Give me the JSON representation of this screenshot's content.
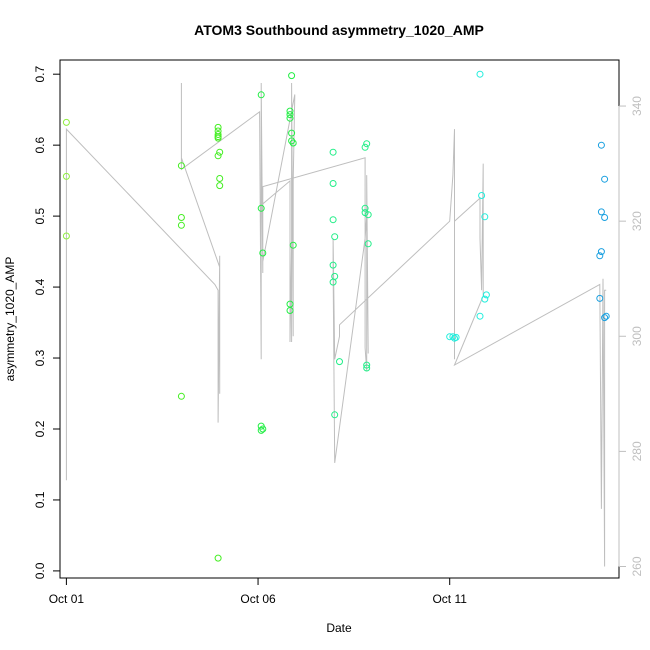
{
  "chart_data": {
    "type": "scatter",
    "title": "ATOM3 Southbound asymmetry_1020_AMP",
    "xlabel": "Date",
    "ylabel": "asymmetry_1020_AMP",
    "xlim": [
      "2023-09-30 20:00",
      "2023-10-15 10:00"
    ],
    "ylim": [
      -0.01,
      0.72
    ],
    "x_ticks": [
      {
        "date": "2023-10-01 00:00",
        "label": "Oct 01"
      },
      {
        "date": "2023-10-06 00:00",
        "label": "Oct 06"
      },
      {
        "date": "2023-10-11 00:00",
        "label": "Oct 11"
      }
    ],
    "y_ticks": [
      0.0,
      0.1,
      0.2,
      0.3,
      0.4,
      0.5,
      0.6,
      0.7
    ],
    "y2lim": [
      258,
      348
    ],
    "y2_ticks": [
      260,
      280,
      300,
      320,
      340
    ],
    "y2_color": "#bfbfbf",
    "grid": false,
    "colors": {
      "early_green": "#90ee40",
      "green": "#22ee22",
      "teal_green": "#22eeaa",
      "cyan": "#22eeee",
      "blue": "#1aa0e0",
      "line": "#bebebe"
    },
    "series": [
      {
        "type": "scatter",
        "color": "#90ee40",
        "points": [
          [
            "2023-10-01 00:00",
            0.632
          ],
          [
            "2023-10-01 00:00",
            0.556
          ],
          [
            "2023-10-01 00:00",
            0.472
          ]
        ]
      },
      {
        "type": "scatter",
        "color": "#44ee22",
        "points": [
          [
            "2023-10-04 00:00",
            0.571
          ],
          [
            "2023-10-04 00:00",
            0.498
          ],
          [
            "2023-10-04 00:00",
            0.487
          ],
          [
            "2023-10-04 00:00",
            0.246
          ],
          [
            "2023-10-04 23:00",
            0.625
          ],
          [
            "2023-10-04 23:00",
            0.62
          ],
          [
            "2023-10-04 23:00",
            0.615
          ],
          [
            "2023-10-04 23:00",
            0.612
          ],
          [
            "2023-10-04 23:00",
            0.61
          ],
          [
            "2023-10-05 00:00",
            0.59
          ],
          [
            "2023-10-04 23:00",
            0.585
          ],
          [
            "2023-10-05 00:00",
            0.553
          ],
          [
            "2023-10-05 00:00",
            0.543
          ],
          [
            "2023-10-04 23:00",
            0.018
          ]
        ]
      },
      {
        "type": "scatter",
        "color": "#22ee44",
        "points": [
          [
            "2023-10-06 02:00",
            0.671
          ],
          [
            "2023-10-06 02:00",
            0.511
          ],
          [
            "2023-10-06 03:00",
            0.448
          ],
          [
            "2023-10-06 02:00",
            0.204
          ],
          [
            "2023-10-06 02:00",
            0.198
          ],
          [
            "2023-10-06 03:00",
            0.2
          ],
          [
            "2023-10-06 21:00",
            0.698
          ],
          [
            "2023-10-06 20:00",
            0.648
          ],
          [
            "2023-10-06 20:00",
            0.643
          ],
          [
            "2023-10-06 20:00",
            0.638
          ],
          [
            "2023-10-06 21:00",
            0.617
          ],
          [
            "2023-10-06 21:00",
            0.606
          ],
          [
            "2023-10-06 22:00",
            0.603
          ],
          [
            "2023-10-06 22:00",
            0.459
          ],
          [
            "2023-10-06 20:00",
            0.376
          ],
          [
            "2023-10-06 20:00",
            0.367
          ]
        ]
      },
      {
        "type": "scatter",
        "color": "#22ee88",
        "points": [
          [
            "2023-10-07 23:00",
            0.59
          ],
          [
            "2023-10-07 23:00",
            0.546
          ],
          [
            "2023-10-07 23:00",
            0.495
          ],
          [
            "2023-10-08 00:00",
            0.471
          ],
          [
            "2023-10-07 23:00",
            0.431
          ],
          [
            "2023-10-08 00:00",
            0.415
          ],
          [
            "2023-10-07 23:00",
            0.407
          ],
          [
            "2023-10-08 03:00",
            0.295
          ],
          [
            "2023-10-08 00:00",
            0.22
          ],
          [
            "2023-10-08 20:00",
            0.602
          ],
          [
            "2023-10-08 19:00",
            0.597
          ],
          [
            "2023-10-08 19:00",
            0.511
          ],
          [
            "2023-10-08 19:00",
            0.505
          ],
          [
            "2023-10-08 21:00",
            0.502
          ],
          [
            "2023-10-08 21:00",
            0.461
          ],
          [
            "2023-10-08 20:00",
            0.29
          ],
          [
            "2023-10-08 20:00",
            0.286
          ]
        ]
      },
      {
        "type": "scatter",
        "color": "#22eedd",
        "points": [
          [
            "2023-10-11 00:00",
            0.33
          ],
          [
            "2023-10-11 02:00",
            0.33
          ],
          [
            "2023-10-11 03:00",
            0.328
          ],
          [
            "2023-10-11 04:00",
            0.329
          ],
          [
            "2023-10-11 19:00",
            0.7
          ],
          [
            "2023-10-11 20:00",
            0.529
          ],
          [
            "2023-10-11 22:00",
            0.499
          ],
          [
            "2023-10-11 23:00",
            0.389
          ],
          [
            "2023-10-11 22:00",
            0.383
          ],
          [
            "2023-10-11 19:00",
            0.359
          ]
        ]
      },
      {
        "type": "scatter",
        "color": "#1aa0e0",
        "points": [
          [
            "2023-10-14 23:00",
            0.6
          ],
          [
            "2023-10-15 01:00",
            0.552
          ],
          [
            "2023-10-14 23:00",
            0.506
          ],
          [
            "2023-10-15 01:00",
            0.498
          ],
          [
            "2023-10-14 23:00",
            0.45
          ],
          [
            "2023-10-14 22:00",
            0.444
          ],
          [
            "2023-10-14 22:00",
            0.384
          ],
          [
            "2023-10-15 02:00",
            0.359
          ],
          [
            "2023-10-15 01:00",
            0.357
          ]
        ]
      },
      {
        "type": "line",
        "axis": "right",
        "color": "#bebebe",
        "points": [
          [
            "2023-10-01 00:00",
            275
          ],
          [
            "2023-10-01 00:00",
            336
          ],
          [
            "2023-10-04 21:00",
            309
          ],
          [
            "2023-10-04 23:00",
            308
          ],
          [
            "2023-10-04 23:00",
            298
          ],
          [
            "2023-10-04 23:00",
            285
          ],
          [
            "2023-10-05 00:00",
            314
          ],
          [
            "2023-10-05 00:00",
            290
          ],
          [
            "2023-10-05 00:00",
            312
          ],
          [
            "2023-10-04 00:00",
            331
          ],
          [
            "2023-10-04 00:00",
            344
          ],
          [
            "2023-10-04 00:00",
            329
          ],
          [
            "2023-10-06 01:00",
            339
          ],
          [
            "2023-10-06 02:00",
            296
          ],
          [
            "2023-10-06 02:00",
            344
          ],
          [
            "2023-10-06 03:00",
            311
          ],
          [
            "2023-10-06 03:00",
            323
          ],
          [
            "2023-10-06 20:00",
            327
          ],
          [
            "2023-10-06 20:00",
            299
          ],
          [
            "2023-10-06 21:00",
            316
          ],
          [
            "2023-10-06 21:00",
            299
          ],
          [
            "2023-10-06 21:00",
            344
          ],
          [
            "2023-10-06 22:00",
            300
          ],
          [
            "2023-10-06 22:00",
            313
          ],
          [
            "2023-10-06 22:00",
            327
          ],
          [
            "2023-10-06 23:00",
            342
          ],
          [
            "2023-10-06 03:00",
            313
          ],
          [
            "2023-10-06 03:00",
            326
          ],
          [
            "2023-10-08 19:00",
            331
          ],
          [
            "2023-10-08 19:00",
            298
          ],
          [
            "2023-10-08 20:00",
            294
          ],
          [
            "2023-10-08 20:00",
            328
          ],
          [
            "2023-10-08 21:00",
            297
          ],
          [
            "2023-10-08 20:00",
            321
          ],
          [
            "2023-10-08 19:00",
            317
          ],
          [
            "2023-10-08 00:00",
            278
          ],
          [
            "2023-10-07 23:00",
            312
          ],
          [
            "2023-10-07 23:00",
            317
          ],
          [
            "2023-10-08 00:00",
            296
          ],
          [
            "2023-10-08 03:00",
            300
          ],
          [
            "2023-10-08 03:00",
            302
          ],
          [
            "2023-10-11 00:00",
            320
          ],
          [
            "2023-10-11 02:00",
            328
          ],
          [
            "2023-10-11 03:00",
            336
          ],
          [
            "2023-10-11 03:00",
            296
          ],
          [
            "2023-10-11 03:00",
            320
          ],
          [
            "2023-10-11 19:00",
            324
          ],
          [
            "2023-10-11 19:00",
            317
          ],
          [
            "2023-10-11 20:00",
            308
          ],
          [
            "2023-10-11 21:00",
            330
          ],
          [
            "2023-10-11 21:00",
            307
          ],
          [
            "2023-10-11 03:00",
            295
          ],
          [
            "2023-10-14 22:00",
            309
          ],
          [
            "2023-10-14 23:00",
            270
          ],
          [
            "2023-10-15 00:00",
            310
          ],
          [
            "2023-10-15 01:00",
            260
          ],
          [
            "2023-10-15 01:00",
            308
          ],
          [
            "2023-10-15 02:00",
            308
          ]
        ]
      }
    ]
  }
}
